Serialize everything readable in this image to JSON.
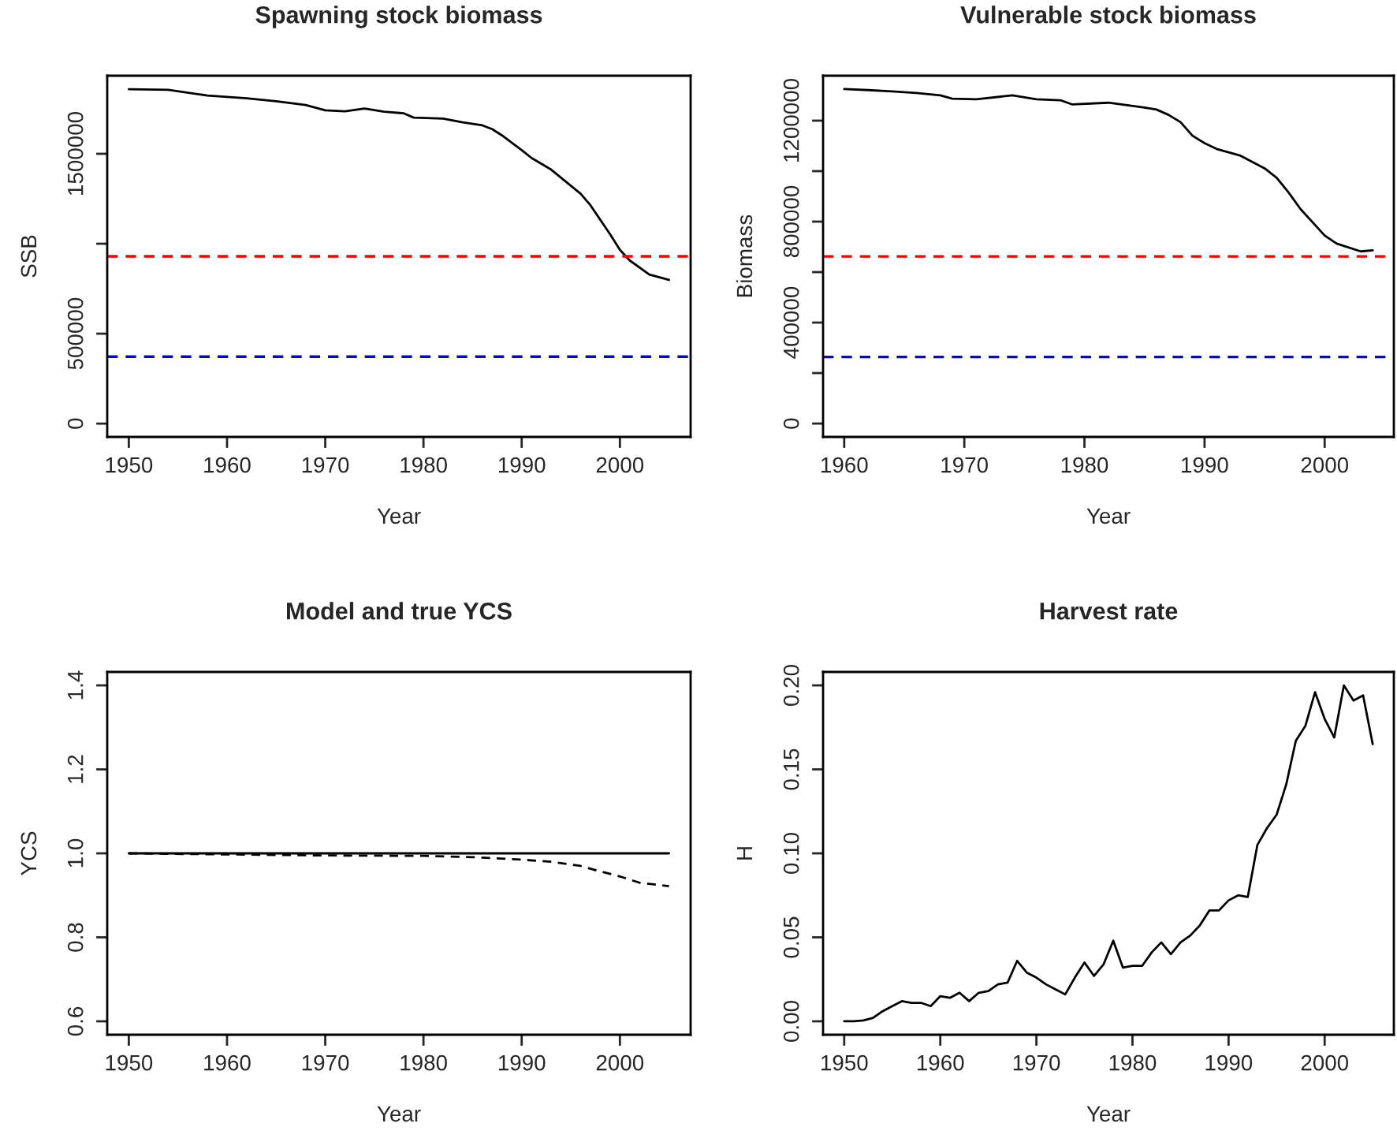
{
  "chart_data": [
    {
      "type": "line",
      "title": "Spawning stock biomass",
      "xlabel": "Year",
      "ylabel": "SSB",
      "x": [
        1950,
        1954,
        1958,
        1962,
        1965,
        1968,
        1970,
        1972,
        1974,
        1976,
        1978,
        1979,
        1982,
        1984,
        1986,
        1987,
        1988,
        1990,
        1991,
        1993,
        1996,
        1997,
        1999,
        2000,
        2001,
        2003,
        2005
      ],
      "series": [
        {
          "color": "#000000",
          "line_style": "solid",
          "values": [
            1859000,
            1856000,
            1824000,
            1809000,
            1792000,
            1771000,
            1742000,
            1736000,
            1751000,
            1734000,
            1725000,
            1701000,
            1696000,
            1675000,
            1658000,
            1637000,
            1602000,
            1520000,
            1477000,
            1412000,
            1278000,
            1214000,
            1053000,
            966000,
            907000,
            829000,
            799000
          ]
        }
      ],
      "xlim": [
        1947.8,
        2007.2
      ],
      "xticks": [
        1950,
        1960,
        1970,
        1980,
        1990,
        2000
      ],
      "ylim": [
        -74000,
        1934000
      ],
      "yticks": [
        0,
        500000,
        {
          "value": 1000000,
          "label": null
        },
        1500000
      ],
      "ref_lines": [
        {
          "axis": "y",
          "value": 930000,
          "color": "#ff0000",
          "line_style": "dashed"
        },
        {
          "axis": "y",
          "value": 372000,
          "color": "#0000ff",
          "line_style": "dashed"
        }
      ],
      "grid": false,
      "legend": false
    },
    {
      "type": "line",
      "title": "Vulnerable stock biomass",
      "xlabel": "Year",
      "ylabel": "Biomass",
      "x": [
        1960,
        1962,
        1964,
        1966,
        1968,
        1969,
        1971,
        1974,
        1976,
        1978,
        1979,
        1982,
        1985,
        1986,
        1987,
        1988,
        1989,
        1990,
        1991,
        1993,
        1995,
        1996,
        1997,
        1998,
        2000,
        2001,
        2003,
        2004
      ],
      "series": [
        {
          "color": "#000000",
          "line_style": "solid",
          "values": [
            1325000,
            1321000,
            1316000,
            1310000,
            1300000,
            1287000,
            1285000,
            1300000,
            1285000,
            1281000,
            1264000,
            1271000,
            1252000,
            1244000,
            1223000,
            1194000,
            1140000,
            1111000,
            1088000,
            1061000,
            1011000,
            974000,
            915000,
            849000,
            745000,
            713000,
            682000,
            686000
          ]
        }
      ],
      "xlim": [
        1958.24,
        2005.76
      ],
      "xticks": [
        1960,
        1970,
        1980,
        1990,
        2000
      ],
      "ylim": [
        -53000,
        1378000
      ],
      "yticks": [
        0,
        {
          "value": 200000,
          "label": null
        },
        400000,
        {
          "value": 600000,
          "label": null
        },
        800000,
        {
          "value": 1000000,
          "label": null
        },
        1200000
      ],
      "ref_lines": [
        {
          "axis": "y",
          "value": 662000,
          "color": "#ff0000",
          "line_style": "dashed"
        },
        {
          "axis": "y",
          "value": 264000,
          "color": "#0000ff",
          "line_style": "dashed"
        }
      ],
      "grid": false,
      "legend": false
    },
    {
      "type": "line",
      "title": "Model and true YCS",
      "xlabel": "Year",
      "ylabel": "YCS",
      "series": [
        {
          "color": "#000000",
          "line_style": "solid",
          "x": [
            1950,
            2005
          ],
          "values": [
            1.0,
            1.0
          ]
        },
        {
          "color": "#000000",
          "line_style": "dashed",
          "x": [
            1950,
            1970,
            1980,
            1985,
            1990,
            1993,
            1996,
            1998,
            2000,
            2002,
            2005
          ],
          "values": [
            1.0,
            0.995,
            0.994,
            0.991,
            0.985,
            0.98,
            0.97,
            0.957,
            0.945,
            0.93,
            0.922
          ]
        }
      ],
      "xlim": [
        1947.8,
        2007.2
      ],
      "xticks": [
        1950,
        1960,
        1970,
        1980,
        1990,
        2000
      ],
      "ylim": [
        0.568,
        1.432
      ],
      "yticks": [
        {
          "value": 0.6,
          "label": "0.6"
        },
        {
          "value": 0.8,
          "label": "0.8"
        },
        {
          "value": 1.0,
          "label": "1.0"
        },
        {
          "value": 1.2,
          "label": "1.2"
        },
        {
          "value": 1.4,
          "label": "1.4"
        }
      ],
      "grid": false,
      "legend": false
    },
    {
      "type": "line",
      "title": "Harvest rate",
      "xlabel": "Year",
      "ylabel": "H",
      "x": [
        1950,
        1951,
        1952,
        1953,
        1954,
        1955,
        1956,
        1957,
        1958,
        1959,
        1960,
        1961,
        1962,
        1963,
        1964,
        1965,
        1966,
        1967,
        1968,
        1969,
        1970,
        1971,
        1972,
        1973,
        1974,
        1975,
        1976,
        1977,
        1978,
        1979,
        1980,
        1981,
        1982,
        1983,
        1984,
        1985,
        1986,
        1987,
        1988,
        1989,
        1990,
        1991,
        1992,
        1993,
        1994,
        1995,
        1996,
        1997,
        1998,
        1999,
        2000,
        2001,
        2002,
        2003,
        2004,
        2005
      ],
      "series": [
        {
          "color": "#000000",
          "line_style": "solid",
          "values": [
            0,
            0,
            0.0005,
            0.002,
            0.006,
            0.009,
            0.012,
            0.011,
            0.011,
            0.009,
            0.015,
            0.014,
            0.017,
            0.012,
            0.017,
            0.018,
            0.022,
            0.023,
            0.036,
            0.029,
            0.026,
            0.022,
            0.019,
            0.016,
            0.026,
            0.035,
            0.027,
            0.034,
            0.048,
            0.032,
            0.033,
            0.033,
            0.041,
            0.047,
            0.04,
            0.047,
            0.051,
            0.057,
            0.066,
            0.066,
            0.072,
            0.075,
            0.074,
            0.105,
            0.115,
            0.123,
            0.141,
            0.167,
            0.176,
            0.196,
            0.18,
            0.169,
            0.2,
            0.191,
            0.194,
            0.165
          ]
        }
      ],
      "xlim": [
        1947.8,
        2007.2
      ],
      "xticks": [
        1950,
        1960,
        1970,
        1980,
        1990,
        2000
      ],
      "ylim": [
        -0.008,
        0.208
      ],
      "yticks": [
        {
          "value": 0.0,
          "label": "0.00"
        },
        {
          "value": 0.05,
          "label": "0.05"
        },
        {
          "value": 0.1,
          "label": "0.10"
        },
        {
          "value": 0.15,
          "label": "0.15"
        },
        {
          "value": 0.2,
          "label": "0.20"
        }
      ],
      "grid": false,
      "legend": false
    }
  ]
}
